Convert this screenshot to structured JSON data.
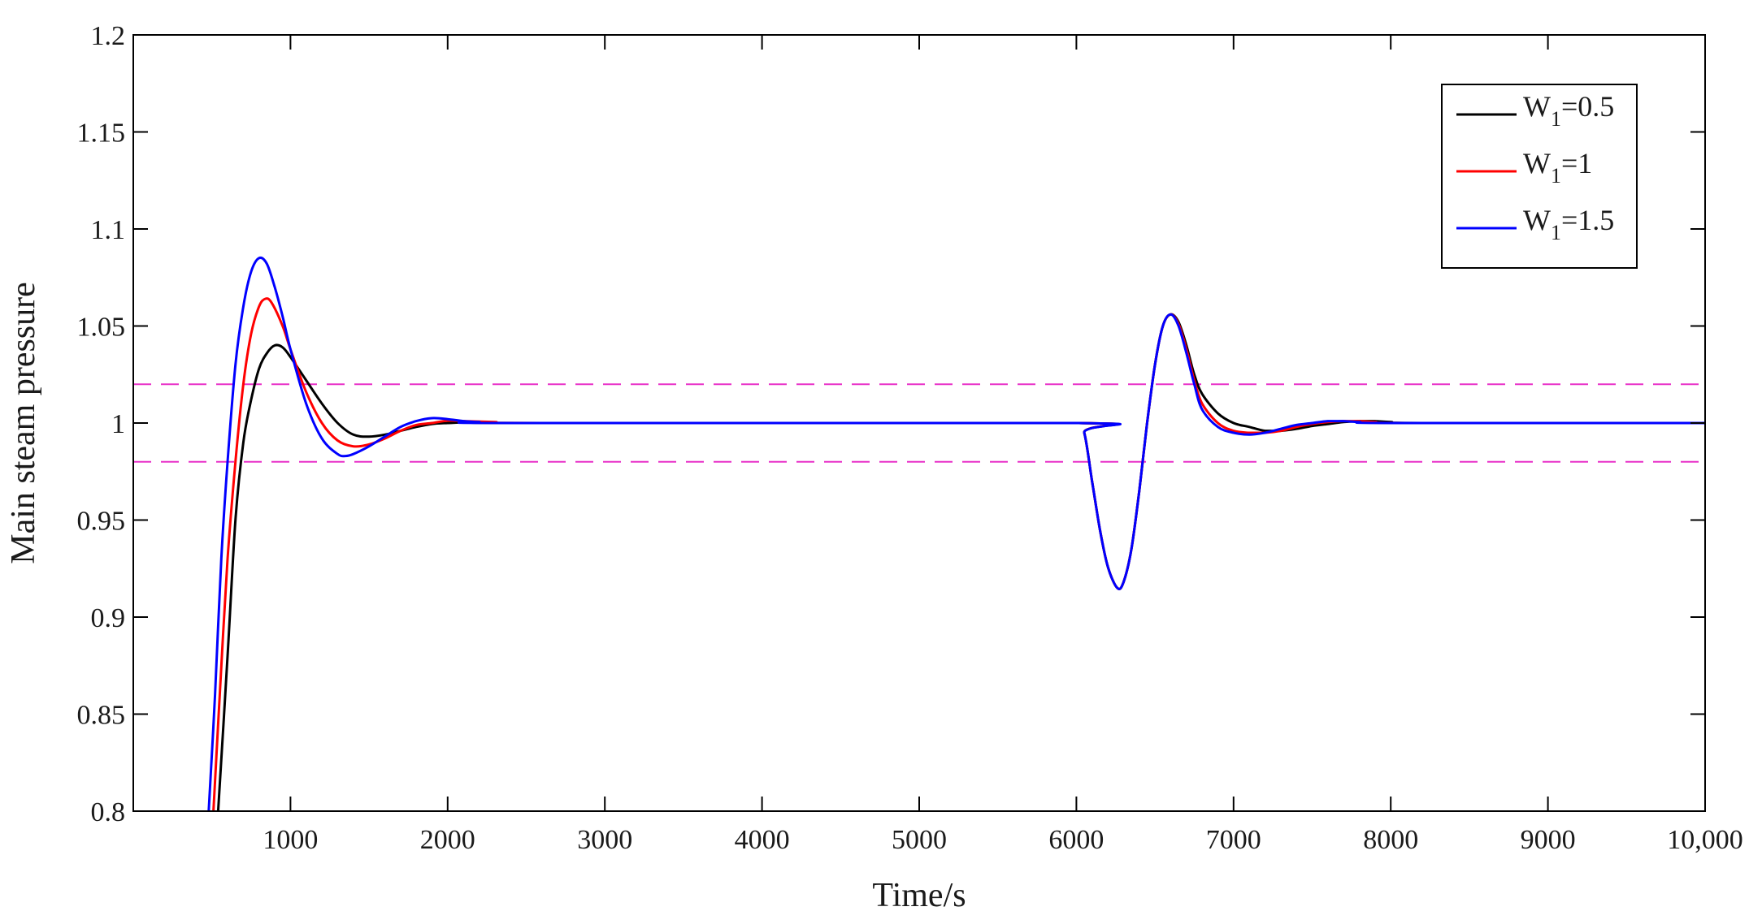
{
  "chart_data": {
    "type": "line",
    "title": "",
    "xlabel": "Time/s",
    "ylabel": "Main steam pressure",
    "xlim": [
      0,
      10000
    ],
    "ylim": [
      0.8,
      1.2
    ],
    "x_ticks": [
      1000,
      2000,
      3000,
      4000,
      5000,
      6000,
      7000,
      8000,
      9000,
      10000
    ],
    "x_tick_labels": [
      "1000",
      "2000",
      "3000",
      "4000",
      "5000",
      "6000",
      "7000",
      "8000",
      "9000",
      "10,000"
    ],
    "y_ticks": [
      0.8,
      0.85,
      0.9,
      0.95,
      1.0,
      1.05,
      1.1,
      1.15,
      1.2
    ],
    "y_tick_labels": [
      "0.8",
      "0.85",
      "0.9",
      "0.95",
      "1",
      "1.05",
      "1.1",
      "1.15",
      "1.2"
    ],
    "grid": false,
    "legend_position": "top-right",
    "reference_lines": [
      {
        "y": 1.02,
        "color": "#e830c8",
        "style": "dashed"
      },
      {
        "y": 0.98,
        "color": "#e830c8",
        "style": "dashed"
      }
    ],
    "series": [
      {
        "name": "W1=0.5",
        "legend_main": "W",
        "legend_sub": "1",
        "legend_rest": "=0.5",
        "color": "#000000",
        "points": [
          [
            540,
            0.8
          ],
          [
            600,
            0.88
          ],
          [
            650,
            0.95
          ],
          [
            700,
            0.99
          ],
          [
            750,
            1.012
          ],
          [
            800,
            1.028
          ],
          [
            850,
            1.036
          ],
          [
            900,
            1.04
          ],
          [
            950,
            1.039
          ],
          [
            1000,
            1.034
          ],
          [
            1100,
            1.022
          ],
          [
            1200,
            1.01
          ],
          [
            1300,
            1.0
          ],
          [
            1400,
            0.994
          ],
          [
            1500,
            0.993
          ],
          [
            1600,
            0.994
          ],
          [
            1700,
            0.996
          ],
          [
            1800,
            0.998
          ],
          [
            1900,
            0.9995
          ],
          [
            2000,
            1.0
          ],
          [
            2200,
            1.0005
          ],
          [
            2500,
            1.0
          ],
          [
            6000,
            1.0
          ],
          [
            6050,
            0.995
          ],
          [
            6100,
            0.97
          ],
          [
            6150,
            0.945
          ],
          [
            6200,
            0.926
          ],
          [
            6260,
            0.915
          ],
          [
            6300,
            0.918
          ],
          [
            6350,
            0.935
          ],
          [
            6400,
            0.965
          ],
          [
            6450,
            1.0
          ],
          [
            6500,
            1.03
          ],
          [
            6550,
            1.05
          ],
          [
            6600,
            1.056
          ],
          [
            6650,
            1.052
          ],
          [
            6700,
            1.04
          ],
          [
            6750,
            1.025
          ],
          [
            6800,
            1.015
          ],
          [
            6900,
            1.005
          ],
          [
            7000,
            1.0
          ],
          [
            7100,
            0.998
          ],
          [
            7200,
            0.996
          ],
          [
            7300,
            0.996
          ],
          [
            7400,
            0.997
          ],
          [
            7500,
            0.9985
          ],
          [
            7600,
            0.9995
          ],
          [
            7700,
            1.0005
          ],
          [
            7800,
            1.001
          ],
          [
            7900,
            1.001
          ],
          [
            8000,
            1.0005
          ],
          [
            8200,
            1.0
          ],
          [
            10000,
            1.0
          ]
        ]
      },
      {
        "name": "W1=1",
        "legend_main": "W",
        "legend_sub": "1",
        "legend_rest": "=1",
        "color": "#ff0000",
        "points": [
          [
            510,
            0.8
          ],
          [
            550,
            0.86
          ],
          [
            600,
            0.93
          ],
          [
            650,
            0.98
          ],
          [
            700,
            1.02
          ],
          [
            750,
            1.046
          ],
          [
            800,
            1.06
          ],
          [
            840,
            1.064
          ],
          [
            880,
            1.062
          ],
          [
            950,
            1.05
          ],
          [
            1000,
            1.038
          ],
          [
            1100,
            1.016
          ],
          [
            1200,
            1.0
          ],
          [
            1300,
            0.991
          ],
          [
            1400,
            0.988
          ],
          [
            1500,
            0.989
          ],
          [
            1600,
            0.992
          ],
          [
            1700,
            0.996
          ],
          [
            1800,
            0.999
          ],
          [
            1900,
            1.0
          ],
          [
            2000,
            1.0012
          ],
          [
            2100,
            1.001
          ],
          [
            2300,
            1.0005
          ],
          [
            2600,
            1.0
          ],
          [
            6000,
            1.0
          ],
          [
            6050,
            0.995
          ],
          [
            6100,
            0.97
          ],
          [
            6150,
            0.945
          ],
          [
            6200,
            0.926
          ],
          [
            6260,
            0.915
          ],
          [
            6300,
            0.918
          ],
          [
            6350,
            0.935
          ],
          [
            6400,
            0.965
          ],
          [
            6450,
            1.0
          ],
          [
            6500,
            1.03
          ],
          [
            6550,
            1.05
          ],
          [
            6600,
            1.056
          ],
          [
            6650,
            1.051
          ],
          [
            6700,
            1.038
          ],
          [
            6750,
            1.022
          ],
          [
            6800,
            1.01
          ],
          [
            6900,
            1.0
          ],
          [
            7000,
            0.996
          ],
          [
            7100,
            0.995
          ],
          [
            7200,
            0.995
          ],
          [
            7300,
            0.996
          ],
          [
            7400,
            0.998
          ],
          [
            7500,
            0.9995
          ],
          [
            7600,
            1.0005
          ],
          [
            7700,
            1.001
          ],
          [
            7800,
            1.001
          ],
          [
            7900,
            1.0005
          ],
          [
            8100,
            1.0
          ],
          [
            10000,
            1.0
          ]
        ]
      },
      {
        "name": "W1=1.5",
        "legend_main": "W",
        "legend_sub": "1",
        "legend_rest": "=1.5",
        "color": "#0000ff",
        "points": [
          [
            480,
            0.8
          ],
          [
            520,
            0.86
          ],
          [
            560,
            0.93
          ],
          [
            600,
            0.98
          ],
          [
            650,
            1.03
          ],
          [
            700,
            1.06
          ],
          [
            750,
            1.078
          ],
          [
            800,
            1.085
          ],
          [
            850,
            1.082
          ],
          [
            900,
            1.07
          ],
          [
            950,
            1.055
          ],
          [
            1000,
            1.038
          ],
          [
            1100,
            1.01
          ],
          [
            1200,
            0.992
          ],
          [
            1300,
            0.984
          ],
          [
            1350,
            0.983
          ],
          [
            1400,
            0.984
          ],
          [
            1500,
            0.988
          ],
          [
            1600,
            0.993
          ],
          [
            1700,
            0.998
          ],
          [
            1800,
            1.001
          ],
          [
            1900,
            1.0025
          ],
          [
            2000,
            1.002
          ],
          [
            2100,
            1.001
          ],
          [
            2200,
            1.0005
          ],
          [
            2400,
            1.0
          ],
          [
            6000,
            1.0
          ],
          [
            6050,
            0.995
          ],
          [
            6100,
            0.97
          ],
          [
            6150,
            0.945
          ],
          [
            6200,
            0.926
          ],
          [
            6260,
            0.915
          ],
          [
            6300,
            0.918
          ],
          [
            6350,
            0.935
          ],
          [
            6400,
            0.965
          ],
          [
            6450,
            1.0
          ],
          [
            6500,
            1.03
          ],
          [
            6550,
            1.05
          ],
          [
            6600,
            1.056
          ],
          [
            6650,
            1.05
          ],
          [
            6700,
            1.036
          ],
          [
            6750,
            1.02
          ],
          [
            6800,
            1.007
          ],
          [
            6900,
            0.998
          ],
          [
            7000,
            0.995
          ],
          [
            7100,
            0.994
          ],
          [
            7200,
            0.995
          ],
          [
            7300,
            0.997
          ],
          [
            7400,
            0.999
          ],
          [
            7500,
            1.0
          ],
          [
            7600,
            1.001
          ],
          [
            7700,
            1.001
          ],
          [
            7800,
            1.0005
          ],
          [
            8000,
            1.0
          ],
          [
            10000,
            1.0
          ]
        ]
      }
    ]
  }
}
